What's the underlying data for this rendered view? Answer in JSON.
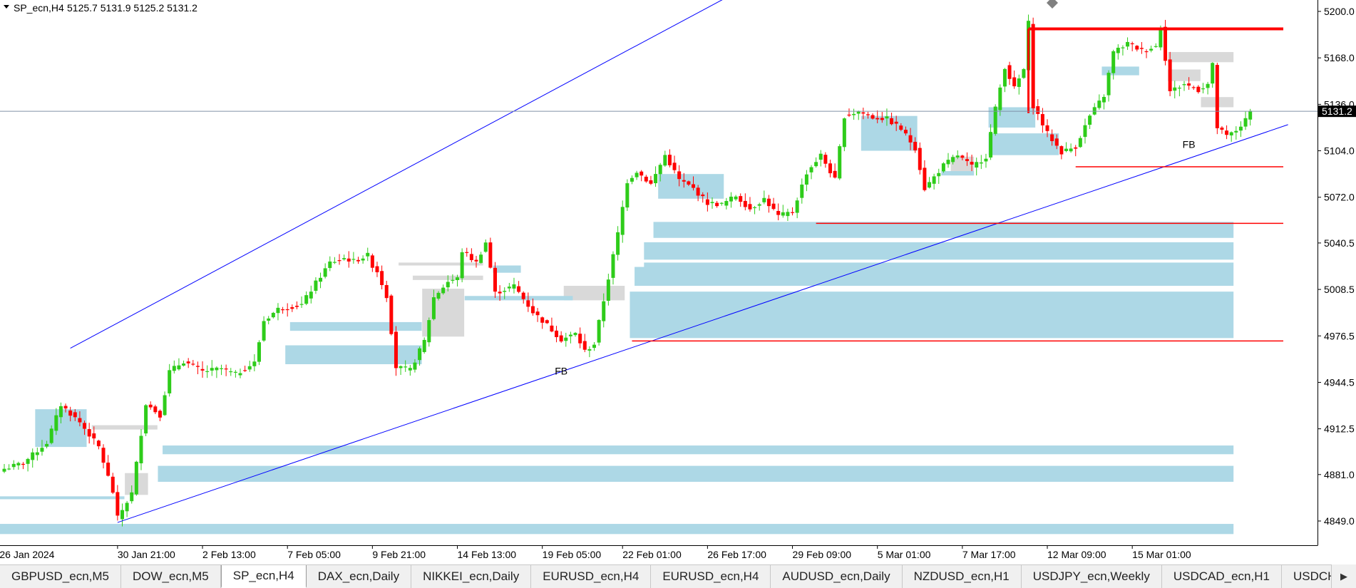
{
  "header": {
    "symbol": "SP_ecn,H4",
    "ohlc": "5125.7 5131.9 5125.2 5131.2"
  },
  "colors": {
    "bull": "#2ecc1a",
    "bear": "#ff0000",
    "zone_blue": "#add8e6",
    "zone_gray": "#d9d9d9",
    "trendline": "#0000ff",
    "level": "#ff0000",
    "price_line": "#8090a8"
  },
  "chart_data": {
    "type": "candlestick",
    "ylim": [
      4834,
      5210
    ],
    "y_ticks": [
      {
        "v": 5200.0,
        "label": "5200.0"
      },
      {
        "v": 5168.0,
        "label": "5168.0"
      },
      {
        "v": 5136.0,
        "label": "5136.0"
      },
      {
        "v": 5104.0,
        "label": "5104.0"
      },
      {
        "v": 5072.0,
        "label": "5072.0"
      },
      {
        "v": 5040.5,
        "label": "5040.5"
      },
      {
        "v": 5008.5,
        "label": "5008.5"
      },
      {
        "v": 4976.5,
        "label": "4976.5"
      },
      {
        "v": 4944.5,
        "label": "4944.5"
      },
      {
        "v": 4912.5,
        "label": "4912.5"
      },
      {
        "v": 4881.0,
        "label": "4881.0"
      },
      {
        "v": 4849.0,
        "label": "4849.0"
      }
    ],
    "x_labels": [
      {
        "i": -1,
        "label": "26 Jan 2024"
      },
      {
        "i": 24,
        "label": "30 Jan 21:00"
      },
      {
        "i": 42,
        "label": "2 Feb 13:00"
      },
      {
        "i": 60,
        "label": "7 Feb 05:00"
      },
      {
        "i": 78,
        "label": "9 Feb 21:00"
      },
      {
        "i": 96,
        "label": "14 Feb 13:00"
      },
      {
        "i": 114,
        "label": "19 Feb 05:00"
      },
      {
        "i": 131,
        "label": "22 Feb 01:00"
      },
      {
        "i": 149,
        "label": "26 Feb 17:00"
      },
      {
        "i": 167,
        "label": "29 Feb 09:00"
      },
      {
        "i": 185,
        "label": "5 Mar 01:00"
      },
      {
        "i": 203,
        "label": "7 Mar 17:00"
      },
      {
        "i": 221,
        "label": "12 Mar 09:00"
      },
      {
        "i": 239,
        "label": "15 Mar 01:00"
      }
    ],
    "current_price": {
      "v": 5131.2,
      "label": "5131.2"
    },
    "anchors": [
      {
        "i": 0,
        "p": 4885
      },
      {
        "i": 4,
        "p": 4889
      },
      {
        "i": 9,
        "p": 4903
      },
      {
        "i": 12,
        "p": 4929
      },
      {
        "i": 16,
        "p": 4917
      },
      {
        "i": 20,
        "p": 4900
      },
      {
        "i": 23,
        "p": 4869
      },
      {
        "i": 24,
        "p": 4851
      },
      {
        "i": 27,
        "p": 4868
      },
      {
        "i": 30,
        "p": 4930
      },
      {
        "i": 33,
        "p": 4922
      },
      {
        "i": 35,
        "p": 4952
      },
      {
        "i": 38,
        "p": 4959
      },
      {
        "i": 42,
        "p": 4952
      },
      {
        "i": 46,
        "p": 4954
      },
      {
        "i": 49,
        "p": 4950
      },
      {
        "i": 53,
        "p": 4958
      },
      {
        "i": 55,
        "p": 4987
      },
      {
        "i": 58,
        "p": 4995
      },
      {
        "i": 63,
        "p": 4998
      },
      {
        "i": 66,
        "p": 5013
      },
      {
        "i": 69,
        "p": 5027
      },
      {
        "i": 72,
        "p": 5030
      },
      {
        "i": 74,
        "p": 5028
      },
      {
        "i": 77,
        "p": 5032
      },
      {
        "i": 78,
        "p": 5025
      },
      {
        "i": 79,
        "p": 5021
      },
      {
        "i": 81,
        "p": 5004
      },
      {
        "i": 83,
        "p": 4955
      },
      {
        "i": 86,
        "p": 4953
      },
      {
        "i": 89,
        "p": 4973
      },
      {
        "i": 91,
        "p": 5003
      },
      {
        "i": 94,
        "p": 5014
      },
      {
        "i": 96,
        "p": 5016
      },
      {
        "i": 97,
        "p": 5035
      },
      {
        "i": 100,
        "p": 5027
      },
      {
        "i": 102,
        "p": 5041
      },
      {
        "i": 104,
        "p": 5006
      },
      {
        "i": 108,
        "p": 5011
      },
      {
        "i": 112,
        "p": 4993
      },
      {
        "i": 115,
        "p": 4984
      },
      {
        "i": 118,
        "p": 4974
      },
      {
        "i": 121,
        "p": 4978
      },
      {
        "i": 123,
        "p": 4966
      },
      {
        "i": 125,
        "p": 4971
      },
      {
        "i": 127,
        "p": 5001
      },
      {
        "i": 130,
        "p": 5047
      },
      {
        "i": 132,
        "p": 5083
      },
      {
        "i": 134,
        "p": 5090
      },
      {
        "i": 137,
        "p": 5081
      },
      {
        "i": 140,
        "p": 5101
      },
      {
        "i": 143,
        "p": 5084
      },
      {
        "i": 146,
        "p": 5078
      },
      {
        "i": 149,
        "p": 5068
      },
      {
        "i": 152,
        "p": 5067
      },
      {
        "i": 155,
        "p": 5073
      },
      {
        "i": 158,
        "p": 5064
      },
      {
        "i": 161,
        "p": 5071
      },
      {
        "i": 164,
        "p": 5059
      },
      {
        "i": 167,
        "p": 5062
      },
      {
        "i": 170,
        "p": 5089
      },
      {
        "i": 173,
        "p": 5101
      },
      {
        "i": 176,
        "p": 5084
      },
      {
        "i": 178,
        "p": 5128
      },
      {
        "i": 181,
        "p": 5131
      },
      {
        "i": 184,
        "p": 5127
      },
      {
        "i": 187,
        "p": 5126
      },
      {
        "i": 190,
        "p": 5119
      },
      {
        "i": 193,
        "p": 5106
      },
      {
        "i": 195,
        "p": 5078
      },
      {
        "i": 197,
        "p": 5086
      },
      {
        "i": 199,
        "p": 5094
      },
      {
        "i": 202,
        "p": 5101
      },
      {
        "i": 205,
        "p": 5093
      },
      {
        "i": 208,
        "p": 5100
      },
      {
        "i": 210,
        "p": 5133
      },
      {
        "i": 212,
        "p": 5162
      },
      {
        "i": 214,
        "p": 5147
      },
      {
        "i": 216,
        "p": 5160
      },
      {
        "i": 217,
        "p": 5192
      },
      {
        "i": 218,
        "p": 5135
      },
      {
        "i": 221,
        "p": 5116
      },
      {
        "i": 224,
        "p": 5103
      },
      {
        "i": 227,
        "p": 5107
      },
      {
        "i": 230,
        "p": 5128
      },
      {
        "i": 233,
        "p": 5142
      },
      {
        "i": 235,
        "p": 5172
      },
      {
        "i": 238,
        "p": 5178
      },
      {
        "i": 241,
        "p": 5173
      },
      {
        "i": 244,
        "p": 5176
      },
      {
        "i": 245,
        "p": 5190
      },
      {
        "i": 247,
        "p": 5145
      },
      {
        "i": 250,
        "p": 5150
      },
      {
        "i": 253,
        "p": 5146
      },
      {
        "i": 255,
        "p": 5150
      },
      {
        "i": 256,
        "p": 5163
      },
      {
        "i": 257,
        "p": 5120
      },
      {
        "i": 259,
        "p": 5114
      },
      {
        "i": 261,
        "p": 5118
      },
      {
        "i": 263,
        "p": 5125
      },
      {
        "i": 264,
        "p": 5131
      }
    ],
    "trendlines": [
      {
        "i1": 14,
        "p1": 4968,
        "i2": 155,
        "p2": 5213
      },
      {
        "i1": 24,
        "p1": 4848,
        "i2": 272,
        "p2": 5122
      }
    ],
    "levels": [
      {
        "i1": 217,
        "i2": 271,
        "p": 5188,
        "thick": true
      },
      {
        "i1": 227,
        "i2": 271,
        "p": 5093,
        "thick": false
      },
      {
        "i1": 172,
        "i2": 271,
        "p": 5054,
        "thick": false
      },
      {
        "i1": 133,
        "i2": 271,
        "p": 4973,
        "thick": false
      }
    ],
    "zones_blue": [
      {
        "i1": 7,
        "i2": 17,
        "p1": 4900,
        "p2": 4926
      },
      {
        "i1": 34,
        "i2": 260,
        "p1": 4901,
        "p2": 4895
      },
      {
        "i1": 33,
        "i2": 260,
        "p1": 4887,
        "p2": 4876
      },
      {
        "i1": -1,
        "i2": 260,
        "p1": 4847,
        "p2": 4840
      },
      {
        "i1": -1,
        "i2": 25,
        "p1": 4866,
        "p2": 4864
      },
      {
        "i1": 61,
        "i2": 88,
        "p1": 4986,
        "p2": 4980
      },
      {
        "i1": 60,
        "i2": 88,
        "p1": 4970,
        "p2": 4957
      },
      {
        "i1": 98,
        "i2": 120,
        "p1": 5004,
        "p2": 5001
      },
      {
        "i1": 104,
        "i2": 109,
        "p1": 5025,
        "p2": 5020
      },
      {
        "i1": 133,
        "i2": 260,
        "p1": 5007,
        "p2": 4975
      },
      {
        "i1": 134,
        "i2": 260,
        "p1": 5024,
        "p2": 5011
      },
      {
        "i1": 136,
        "i2": 260,
        "p1": 5027,
        "p2": 5024
      },
      {
        "i1": 136,
        "i2": 260,
        "p1": 5041,
        "p2": 5029
      },
      {
        "i1": 138,
        "i2": 260,
        "p1": 5055,
        "p2": 5044
      },
      {
        "i1": 139,
        "i2": 152,
        "p1": 5088,
        "p2": 5071
      },
      {
        "i1": 182,
        "i2": 193,
        "p1": 5128,
        "p2": 5104
      },
      {
        "i1": 199,
        "i2": 205,
        "p1": 5090,
        "p2": 5087
      },
      {
        "i1": 209,
        "i2": 218,
        "p1": 5134,
        "p2": 5120
      },
      {
        "i1": 209,
        "i2": 223,
        "p1": 5116,
        "p2": 5101
      },
      {
        "i1": 233,
        "i2": 240,
        "p1": 5162,
        "p2": 5156
      }
    ],
    "zones_gray": [
      {
        "i1": 19,
        "i2": 32,
        "p1": 4915,
        "p2": 4912
      },
      {
        "i1": 26,
        "i2": 30,
        "p1": 4882,
        "p2": 4867
      },
      {
        "i1": 84,
        "i2": 101,
        "p1": 5027,
        "p2": 5025
      },
      {
        "i1": 87,
        "i2": 101,
        "p1": 5018,
        "p2": 5015
      },
      {
        "i1": 89,
        "i2": 97,
        "p1": 5009,
        "p2": 4976
      },
      {
        "i1": 119,
        "i2": 131,
        "p1": 5011,
        "p2": 5001
      },
      {
        "i1": 201,
        "i2": 205,
        "p1": 5100,
        "p2": 5087
      },
      {
        "i1": 247,
        "i2": 260,
        "p1": 5172,
        "p2": 5165
      },
      {
        "i1": 247,
        "i2": 253,
        "p1": 5160,
        "p2": 5152
      },
      {
        "i1": 254,
        "i2": 260,
        "p1": 5141,
        "p2": 5134
      }
    ],
    "annotations": [
      {
        "text": "FB",
        "i": 118,
        "p": 4950
      },
      {
        "text": "FB",
        "i": 251,
        "p": 5106
      }
    ]
  },
  "tabs": [
    {
      "label": "GBPUSD_ecn,M5",
      "active": false
    },
    {
      "label": "DOW_ecn,M5",
      "active": false
    },
    {
      "label": "SP_ecn,H4",
      "active": true
    },
    {
      "label": "DAX_ecn,Daily",
      "active": false
    },
    {
      "label": "NIKKEI_ecn,Daily",
      "active": false
    },
    {
      "label": "EURUSD_ecn,H4",
      "active": false
    },
    {
      "label": "EURUSD_ecn,H4",
      "active": false
    },
    {
      "label": "AUDUSD_ecn,Daily",
      "active": false
    },
    {
      "label": "NZDUSD_ecn,H1",
      "active": false
    },
    {
      "label": "USDJPY_ecn,Weekly",
      "active": false
    },
    {
      "label": "USDCAD_ecn,H1",
      "active": false
    },
    {
      "label": "USDCHF,Daily",
      "active": false
    }
  ]
}
